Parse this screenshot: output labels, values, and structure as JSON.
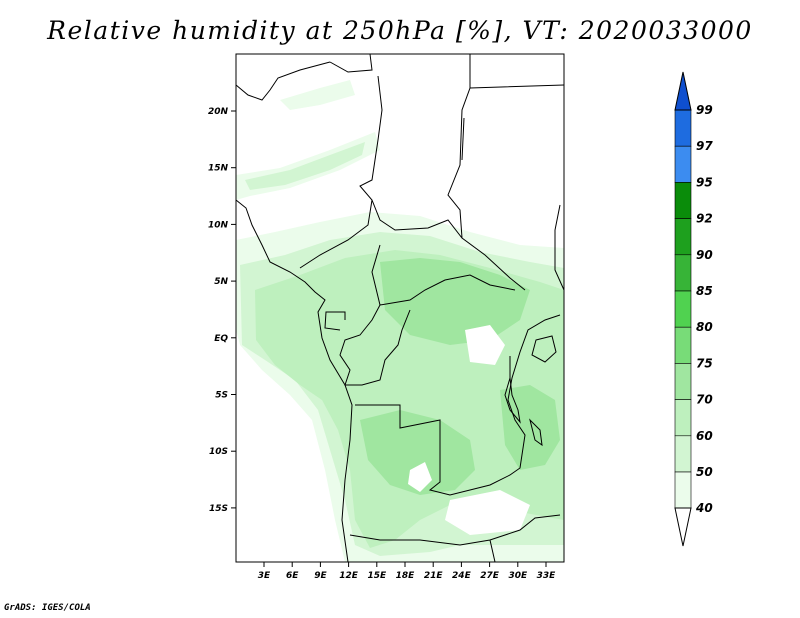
{
  "title": "Relative humidity at 250hPa [%], VT: 2020033000",
  "credit": "GrADS: IGES/COLA",
  "lat_ticks": [
    "20N",
    "15N",
    "10N",
    "5N",
    "EQ",
    "5S",
    "10S",
    "15S"
  ],
  "lon_ticks": [
    "3E",
    "6E",
    "9E",
    "12E",
    "15E",
    "18E",
    "21E",
    "24E",
    "27E",
    "30E",
    "33E"
  ],
  "colorbar": {
    "labels": [
      "99",
      "97",
      "95",
      "92",
      "90",
      "85",
      "80",
      "75",
      "70",
      "60",
      "50",
      "40"
    ],
    "colors": [
      "#0f4fcf",
      "#1e6ce0",
      "#3c8cf0",
      "#0a8c0a",
      "#1ea01e",
      "#37b437",
      "#50d250",
      "#78dc78",
      "#a0e6a0",
      "#bef0be",
      "#d2f5d2",
      "#ebfceb"
    ]
  }
}
